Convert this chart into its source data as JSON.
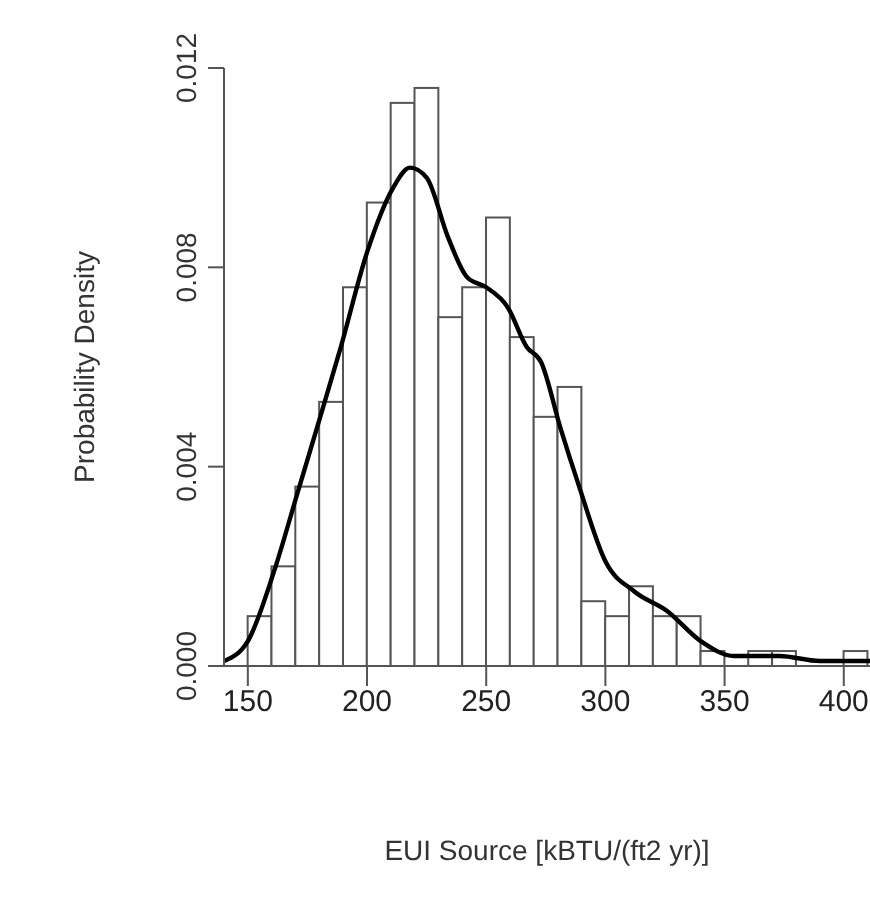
{
  "chart_data": {
    "type": "histogram",
    "xlabel": "EUI Source [kBTU/(ft2 yr)]",
    "ylabel": "Probability Density",
    "xlim": [
      140,
      411
    ],
    "ylim": [
      0,
      0.012
    ],
    "xticks": [
      150,
      200,
      250,
      300,
      350,
      400
    ],
    "yticks": [
      {
        "value": 0,
        "label": "0.000"
      },
      {
        "value": 0.004,
        "label": "0.004"
      },
      {
        "value": 0.008,
        "label": "0.008"
      },
      {
        "value": 0.012,
        "label": "0.012"
      }
    ],
    "line_style": "solid",
    "marker": "none",
    "series": [
      {
        "color": "#ffffff",
        "bins": [
          150,
          160,
          170,
          180,
          190,
          200,
          210,
          220,
          230,
          240,
          250,
          260,
          270,
          280,
          290,
          300,
          310,
          320,
          330,
          340,
          350,
          360,
          370,
          380,
          390,
          400,
          410
        ],
        "values": [
          0.001,
          0.002,
          0.0036,
          0.0053,
          0.0076,
          0.0093,
          0.0113,
          0.0116,
          0.007,
          0.0076,
          0.009,
          0.0066,
          0.005,
          0.0056,
          0.0013,
          0.001,
          0.0016,
          0.001,
          0.001,
          0.0003,
          0,
          0.0003,
          0.0003,
          0,
          0,
          0.0003
        ]
      },
      {
        "type": "line",
        "color": "#000000",
        "x": [
          140,
          150,
          161,
          171,
          181,
          189,
          200,
          211,
          218,
          225,
          234,
          242,
          250,
          259,
          267,
          273,
          281,
          289,
          300,
          312,
          326,
          340,
          354,
          373,
          390,
          411
        ],
        "values": [
          0.0001,
          0.0005,
          0.0019,
          0.0035,
          0.0051,
          0.0064,
          0.0083,
          0.0096,
          0.01,
          0.0098,
          0.0086,
          0.0078,
          0.0076,
          0.0072,
          0.0064,
          0.0061,
          0.0048,
          0.0036,
          0.0021,
          0.0015,
          0.0011,
          0.0005,
          0.0002,
          0.0002,
          0.0001,
          0.0001
        ]
      }
    ]
  }
}
